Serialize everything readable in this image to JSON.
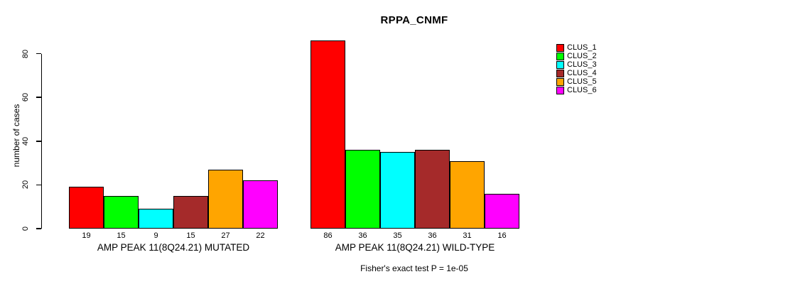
{
  "chart_data": {
    "type": "bar",
    "title": "RPPA_CNMF",
    "ylabel": "number of cases",
    "xlabel": "",
    "annotation": "Fisher's exact test P = 1e-05",
    "categories": [
      "AMP PEAK 11(8Q24.21) MUTATED",
      "AMP PEAK 11(8Q24.21) WILD-TYPE"
    ],
    "series": [
      {
        "name": "CLUS_1",
        "color": "#FF0000",
        "values": [
          19,
          86
        ]
      },
      {
        "name": "CLUS_2",
        "color": "#00FF00",
        "values": [
          15,
          36
        ]
      },
      {
        "name": "CLUS_3",
        "color": "#00FFFF",
        "values": [
          9,
          35
        ]
      },
      {
        "name": "CLUS_4",
        "color": "#A52A2A",
        "values": [
          15,
          36
        ]
      },
      {
        "name": "CLUS_5",
        "color": "#FFA500",
        "values": [
          27,
          31
        ]
      },
      {
        "name": "CLUS_6",
        "color": "#FF00FF",
        "values": [
          22,
          16
        ]
      }
    ],
    "y_ticks": [
      0,
      20,
      40,
      60,
      80
    ],
    "ylim": [
      0,
      86
    ],
    "bar_value_labels_shown": true,
    "legend_position": "right",
    "grid": false,
    "background_color": "#FFFFFF",
    "axis_color": "#000000"
  }
}
